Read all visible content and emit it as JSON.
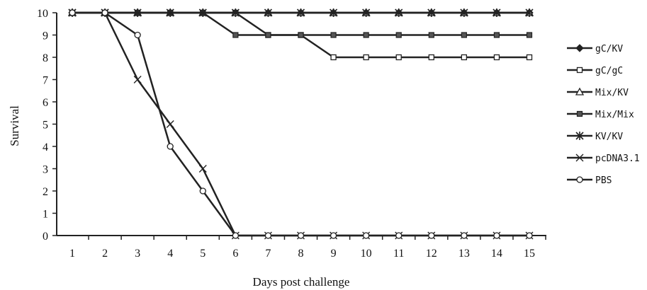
{
  "chart_data": {
    "type": "line",
    "title": "",
    "xlabel": "Days post challenge",
    "ylabel": "Survival",
    "x": [
      1,
      2,
      3,
      4,
      5,
      6,
      7,
      8,
      9,
      10,
      11,
      12,
      13,
      14,
      15
    ],
    "xlim": [
      1,
      15
    ],
    "ylim": [
      0,
      10
    ],
    "yticks": [
      0,
      1,
      2,
      3,
      4,
      5,
      6,
      7,
      8,
      9,
      10
    ],
    "grid": false,
    "legend_position": "right",
    "series": [
      {
        "name": "gC/KV",
        "marker": "diamond-filled",
        "color": "#222222",
        "values": [
          10,
          10,
          10,
          10,
          10,
          10,
          10,
          10,
          10,
          10,
          10,
          10,
          10,
          10,
          10
        ]
      },
      {
        "name": "gC/gC",
        "marker": "square-open",
        "color": "#222222",
        "values": [
          10,
          10,
          10,
          10,
          10,
          10,
          9,
          9,
          8,
          8,
          8,
          8,
          8,
          8,
          8
        ]
      },
      {
        "name": "Mix/KV",
        "marker": "triangle-open",
        "color": "#222222",
        "values": [
          10,
          10,
          10,
          10,
          10,
          10,
          10,
          10,
          10,
          10,
          10,
          10,
          10,
          10,
          10
        ]
      },
      {
        "name": "Mix/Mix",
        "marker": "square-filled",
        "color": "#222222",
        "values": [
          10,
          10,
          10,
          10,
          10,
          9,
          9,
          9,
          9,
          9,
          9,
          9,
          9,
          9,
          9
        ]
      },
      {
        "name": "KV/KV",
        "marker": "asterisk",
        "color": "#222222",
        "values": [
          10,
          10,
          10,
          10,
          10,
          10,
          10,
          10,
          10,
          10,
          10,
          10,
          10,
          10,
          10
        ]
      },
      {
        "name": "pcDNA3.1",
        "marker": "x",
        "color": "#222222",
        "values": [
          10,
          10,
          7,
          5,
          3,
          0,
          0,
          0,
          0,
          0,
          0,
          0,
          0,
          0,
          0
        ]
      },
      {
        "name": "PBS",
        "marker": "circle-open",
        "color": "#222222",
        "values": [
          10,
          10,
          9,
          4,
          2,
          0,
          0,
          0,
          0,
          0,
          0,
          0,
          0,
          0,
          0
        ]
      }
    ]
  }
}
